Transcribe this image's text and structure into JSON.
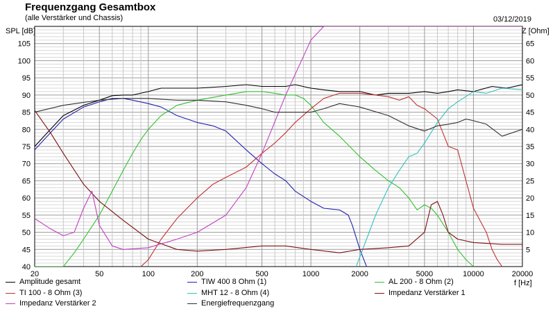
{
  "header": {
    "title": "Frequenzgang Gesamtbox",
    "subtitle": "(alle Verstärker und Chassis)",
    "date": "03/12/2019"
  },
  "axes": {
    "left_label": "SPL [dB]",
    "right_label": "Z [Ohm]",
    "x_unit": "f [Hz]"
  },
  "chart_data": {
    "type": "line",
    "x_scale": "log",
    "xlim": [
      20,
      20000
    ],
    "ylim_left": [
      40,
      110
    ],
    "ylim_right": [
      0,
      70
    ],
    "grid": true,
    "x_ticks": [
      20,
      50,
      100,
      200,
      500,
      1000,
      2000,
      5000,
      10000,
      20000
    ],
    "x_tick_labels": [
      "20",
      "50",
      "100",
      "200",
      "500",
      "1000",
      "2000",
      "5000",
      "10000",
      "20000"
    ],
    "y_ticks_left": [
      "40",
      "45",
      "50",
      "55",
      "60",
      "65",
      "70",
      "75",
      "80",
      "85",
      "90",
      "95",
      "100",
      "105"
    ],
    "y_ticks_right": [
      "5",
      "10",
      "15",
      "20",
      "25",
      "30",
      "35",
      "40",
      "45",
      "50",
      "55",
      "60",
      "65"
    ],
    "series": [
      {
        "name": "Amplitude gesamt",
        "color": "#000000",
        "axis": "left",
        "points": [
          [
            20,
            75
          ],
          [
            25,
            80
          ],
          [
            30,
            84
          ],
          [
            40,
            87
          ],
          [
            50,
            88.5
          ],
          [
            60,
            89.8
          ],
          [
            70,
            90
          ],
          [
            80,
            90
          ],
          [
            100,
            91
          ],
          [
            120,
            92
          ],
          [
            150,
            92
          ],
          [
            200,
            92
          ],
          [
            300,
            92.5
          ],
          [
            400,
            93
          ],
          [
            500,
            92.5
          ],
          [
            700,
            92.5
          ],
          [
            800,
            93
          ],
          [
            1000,
            92
          ],
          [
            1200,
            91.5
          ],
          [
            1500,
            91
          ],
          [
            2000,
            91
          ],
          [
            2500,
            90
          ],
          [
            3000,
            90.5
          ],
          [
            4000,
            90.5
          ],
          [
            5000,
            91
          ],
          [
            6000,
            90.5
          ],
          [
            7000,
            91
          ],
          [
            8000,
            91.5
          ],
          [
            10000,
            91
          ],
          [
            13000,
            92.5
          ],
          [
            16000,
            92
          ],
          [
            20000,
            93
          ]
        ]
      },
      {
        "name": "TIW 400 8 Ohm (1)",
        "color": "#2020b0",
        "axis": "left",
        "points": [
          [
            20,
            74
          ],
          [
            25,
            79
          ],
          [
            30,
            83
          ],
          [
            40,
            86.5
          ],
          [
            50,
            88
          ],
          [
            60,
            89
          ],
          [
            70,
            89
          ],
          [
            80,
            88.5
          ],
          [
            100,
            87.5
          ],
          [
            120,
            86.5
          ],
          [
            150,
            84
          ],
          [
            200,
            82
          ],
          [
            250,
            81
          ],
          [
            300,
            79.5
          ],
          [
            400,
            74
          ],
          [
            500,
            70
          ],
          [
            600,
            67
          ],
          [
            700,
            65
          ],
          [
            800,
            62
          ],
          [
            1000,
            59
          ],
          [
            1200,
            57
          ],
          [
            1500,
            56.5
          ],
          [
            1700,
            55
          ],
          [
            1800,
            52
          ],
          [
            2000,
            45
          ],
          [
            2200,
            40
          ]
        ]
      },
      {
        "name": "AL 200 - 8 Ohm (2)",
        "color": "#30c030",
        "axis": "left",
        "points": [
          [
            20,
            40
          ],
          [
            30,
            40
          ],
          [
            35,
            44
          ],
          [
            40,
            48
          ],
          [
            50,
            55
          ],
          [
            60,
            62
          ],
          [
            70,
            68
          ],
          [
            80,
            73
          ],
          [
            90,
            77
          ],
          [
            100,
            80
          ],
          [
            120,
            84
          ],
          [
            150,
            87
          ],
          [
            200,
            88.5
          ],
          [
            300,
            90
          ],
          [
            400,
            91
          ],
          [
            500,
            91
          ],
          [
            600,
            90.5
          ],
          [
            700,
            90
          ],
          [
            800,
            90
          ],
          [
            900,
            89
          ],
          [
            1000,
            87
          ],
          [
            1200,
            82
          ],
          [
            1500,
            78
          ],
          [
            2000,
            72
          ],
          [
            2500,
            68
          ],
          [
            3000,
            65
          ],
          [
            3500,
            63
          ],
          [
            4000,
            60
          ],
          [
            4500,
            56.5
          ],
          [
            5000,
            58
          ],
          [
            5500,
            57
          ],
          [
            6000,
            55
          ],
          [
            7000,
            50
          ],
          [
            8000,
            45
          ],
          [
            9000,
            42
          ],
          [
            10000,
            40
          ]
        ]
      },
      {
        "name": "TI 100 - 8 Ohm (3)",
        "color": "#c03030",
        "axis": "left",
        "points": [
          [
            90,
            40
          ],
          [
            100,
            42
          ],
          [
            120,
            48
          ],
          [
            150,
            54
          ],
          [
            200,
            60
          ],
          [
            250,
            64
          ],
          [
            300,
            66
          ],
          [
            400,
            69
          ],
          [
            500,
            73
          ],
          [
            600,
            76
          ],
          [
            700,
            79
          ],
          [
            800,
            82
          ],
          [
            1000,
            86
          ],
          [
            1200,
            89
          ],
          [
            1500,
            90.5
          ],
          [
            2000,
            90.5
          ],
          [
            2500,
            90
          ],
          [
            3000,
            89.5
          ],
          [
            3500,
            88.5
          ],
          [
            4000,
            89.5
          ],
          [
            4500,
            87
          ],
          [
            5000,
            86
          ],
          [
            6000,
            83
          ],
          [
            7000,
            75
          ],
          [
            8000,
            74
          ],
          [
            9000,
            65
          ],
          [
            10000,
            57
          ],
          [
            12000,
            50
          ],
          [
            13000,
            45
          ],
          [
            14000,
            42
          ],
          [
            15000,
            40
          ]
        ]
      },
      {
        "name": "MHT 12 - 8 Ohm (4)",
        "color": "#30c0c0",
        "axis": "left",
        "points": [
          [
            1900,
            40
          ],
          [
            2200,
            48
          ],
          [
            2500,
            55
          ],
          [
            3000,
            63
          ],
          [
            3500,
            68
          ],
          [
            4000,
            72
          ],
          [
            4500,
            73
          ],
          [
            5000,
            76
          ],
          [
            6000,
            82
          ],
          [
            7000,
            86
          ],
          [
            8000,
            88
          ],
          [
            10000,
            91
          ],
          [
            12000,
            90.5
          ],
          [
            15000,
            92
          ],
          [
            20000,
            91.5
          ]
        ]
      },
      {
        "name": "Impedanz Verstärker 1",
        "color": "#7a1010",
        "axis": "right",
        "points": [
          [
            20,
            45.5
          ],
          [
            25,
            39
          ],
          [
            30,
            33
          ],
          [
            40,
            24
          ],
          [
            50,
            19
          ],
          [
            70,
            13.5
          ],
          [
            100,
            8
          ],
          [
            150,
            5
          ],
          [
            200,
            4.5
          ],
          [
            300,
            5
          ],
          [
            500,
            6
          ],
          [
            700,
            6
          ],
          [
            1000,
            5
          ],
          [
            1500,
            4
          ],
          [
            2000,
            5
          ],
          [
            3000,
            5.5
          ],
          [
            4000,
            6
          ],
          [
            5000,
            10
          ],
          [
            5500,
            18
          ],
          [
            6000,
            19
          ],
          [
            6500,
            15
          ],
          [
            7000,
            10
          ],
          [
            8000,
            8
          ],
          [
            10000,
            7
          ],
          [
            15000,
            6.5
          ],
          [
            20000,
            6.5
          ]
        ]
      },
      {
        "name": "Impedanz Verstärker 2",
        "color": "#c040c0",
        "axis": "right",
        "points": [
          [
            20,
            14
          ],
          [
            25,
            11
          ],
          [
            30,
            9
          ],
          [
            35,
            10
          ],
          [
            40,
            17
          ],
          [
            45,
            22
          ],
          [
            50,
            12
          ],
          [
            60,
            6
          ],
          [
            70,
            5
          ],
          [
            100,
            5.5
          ],
          [
            150,
            8
          ],
          [
            200,
            10
          ],
          [
            300,
            15
          ],
          [
            400,
            23
          ],
          [
            500,
            33
          ],
          [
            700,
            50
          ],
          [
            1000,
            66
          ],
          [
            1200,
            70
          ],
          [
            20000,
            70
          ]
        ]
      },
      {
        "name": "Energiefrequenzgang",
        "color": "#303030",
        "axis": "left",
        "points": [
          [
            20,
            85
          ],
          [
            30,
            87
          ],
          [
            50,
            88.5
          ],
          [
            70,
            89
          ],
          [
            100,
            89
          ],
          [
            150,
            88.5
          ],
          [
            200,
            88.5
          ],
          [
            300,
            88
          ],
          [
            400,
            87
          ],
          [
            500,
            86
          ],
          [
            600,
            85
          ],
          [
            800,
            85
          ],
          [
            1000,
            85
          ],
          [
            1200,
            86
          ],
          [
            1500,
            87.5
          ],
          [
            2000,
            86.5
          ],
          [
            3000,
            84
          ],
          [
            4000,
            81
          ],
          [
            5000,
            79.5
          ],
          [
            6000,
            81
          ],
          [
            7000,
            81.5
          ],
          [
            8000,
            82
          ],
          [
            9000,
            83
          ],
          [
            10000,
            82.5
          ],
          [
            12000,
            81.5
          ],
          [
            15000,
            78
          ],
          [
            20000,
            80
          ]
        ]
      }
    ]
  },
  "legend": [
    "Amplitude gesamt",
    "TIW 400 8 Ohm (1)",
    "AL 200 - 8 Ohm (2)",
    "TI 100 - 8 Ohm (3)",
    "MHT 12 - 8 Ohm (4)",
    "Impedanz Verstärker 1",
    "Impedanz Verstärker 2",
    "Energiefrequenzgang"
  ]
}
